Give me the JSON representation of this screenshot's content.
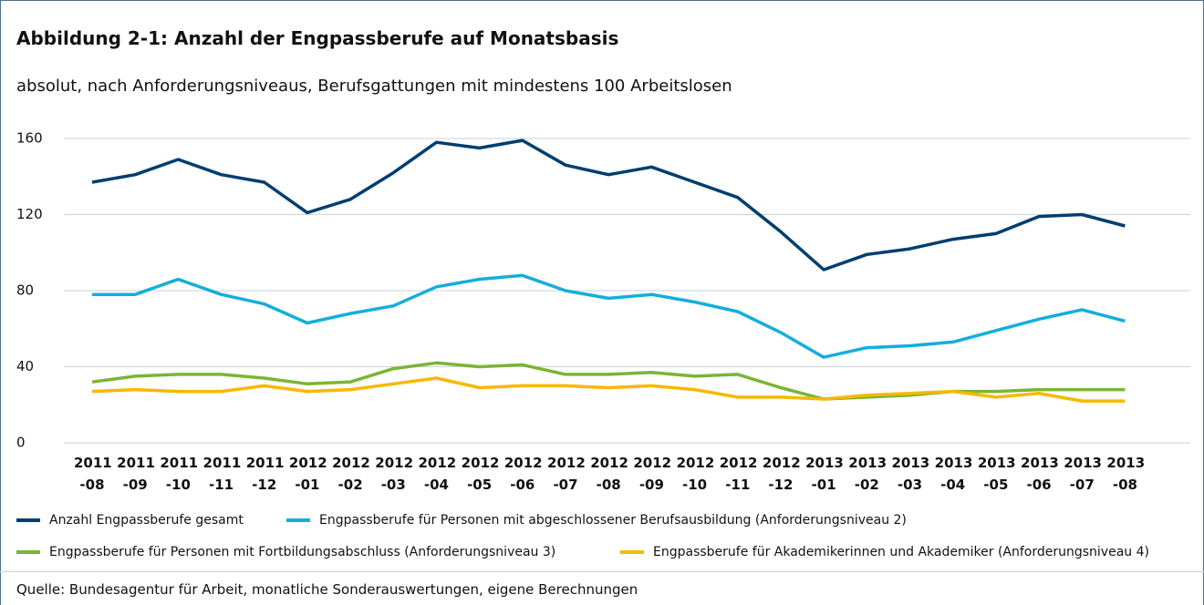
{
  "chart_data": {
    "type": "line",
    "title": "Abbildung 2-1: Anzahl der Engpassberufe auf Monatsbasis",
    "subtitle": "absolut, nach Anforderungsniveaus, Berufsgattungen mit mindestens 100 Arbeitslosen",
    "source": "Quelle: Bundesagentur für Arbeit, monatliche Sonderauswertungen, eigene Berechnungen",
    "categories": [
      "2011 -08",
      "2011 -09",
      "2011 -10",
      "2011 -11",
      "2011 -12",
      "2012 -01",
      "2012 -02",
      "2012 -03",
      "2012 -04",
      "2012 -05",
      "2012 -06",
      "2012 -07",
      "2012 -08",
      "2012 -09",
      "2012 -10",
      "2012 -11",
      "2012 -12",
      "2013 -01",
      "2013 -02",
      "2013 -03",
      "2013 -04",
      "2013 -05",
      "2013 -06",
      "2013 -07",
      "2013 -08"
    ],
    "series": [
      {
        "name": "Anzahl Engpassberufe gesamt",
        "color": "#003e6e",
        "values": [
          137,
          141,
          149,
          141,
          137,
          121,
          128,
          142,
          158,
          155,
          159,
          146,
          141,
          145,
          137,
          129,
          111,
          91,
          99,
          102,
          107,
          110,
          119,
          120,
          114
        ]
      },
      {
        "name": "Engpassberufe für Personen mit abgeschlossener Berufsausbildung (Anforderungsniveau 2)",
        "color": "#14aedb",
        "values": [
          78,
          78,
          86,
          78,
          73,
          63,
          68,
          72,
          82,
          86,
          88,
          80,
          76,
          78,
          74,
          69,
          58,
          45,
          50,
          51,
          53,
          59,
          65,
          70,
          64
        ]
      },
      {
        "name": "Engpassberufe für Personen mit Fortbildungsabschluss (Anforderungsniveau 3)",
        "color": "#7ab534",
        "values": [
          32,
          35,
          36,
          36,
          34,
          31,
          32,
          39,
          42,
          40,
          41,
          36,
          36,
          37,
          35,
          36,
          29,
          23,
          24,
          25,
          27,
          27,
          28,
          28,
          28
        ]
      },
      {
        "name": "Engpassberufe für Akademikerinnen und Akademiker (Anforderungsniveau 4)",
        "color": "#f7b900",
        "values": [
          27,
          28,
          27,
          27,
          30,
          27,
          28,
          31,
          34,
          29,
          30,
          30,
          29,
          30,
          28,
          24,
          24,
          23,
          25,
          26,
          27,
          24,
          26,
          22,
          22
        ]
      }
    ],
    "ylim": [
      0,
      160
    ],
    "yticks": [
      0,
      40,
      80,
      120,
      160
    ],
    "grid": true
  }
}
